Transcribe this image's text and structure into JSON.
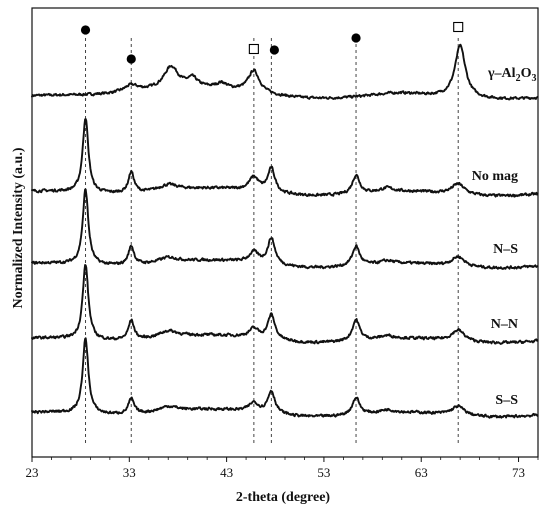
{
  "chart_data": {
    "type": "line",
    "title": "",
    "xlabel": "2-theta (degree)",
    "ylabel": "Normalized Intensity (a.u.)",
    "xlim": [
      23,
      75
    ],
    "xticks": [
      23,
      33,
      43,
      53,
      63,
      73
    ],
    "grid": false,
    "markers": [
      {
        "symbol": "filled-circle",
        "x": 28.5
      },
      {
        "symbol": "filled-circle",
        "x": 33.2
      },
      {
        "symbol": "open-square",
        "x": 45.8
      },
      {
        "symbol": "filled-circle",
        "x": 47.6
      },
      {
        "symbol": "filled-circle",
        "x": 56.3
      },
      {
        "symbol": "open-square",
        "x": 66.8
      }
    ],
    "series": [
      {
        "name": "γ–Al₂O₃",
        "label_parts": [
          "γ–Al",
          "2",
          "O",
          "3"
        ],
        "peaks": [
          [
            33.2,
            0.13,
            0.9
          ],
          [
            37.3,
            0.42,
            0.9
          ],
          [
            39.5,
            0.16,
            0.6
          ],
          [
            42.5,
            0.1,
            0.6
          ],
          [
            45.8,
            0.42,
            0.7
          ],
          [
            60.5,
            0.06,
            3.0
          ],
          [
            67.0,
            1.0,
            0.65
          ]
        ],
        "baseline": [
          0.08,
          0.18,
          0.03
        ],
        "noise": 0.04
      },
      {
        "name": "No mag",
        "peaks": [
          [
            28.5,
            1.0,
            0.35
          ],
          [
            33.2,
            0.28,
            0.35
          ],
          [
            37.0,
            0.08,
            1.2
          ],
          [
            45.8,
            0.18,
            0.6
          ],
          [
            47.6,
            0.32,
            0.45
          ],
          [
            56.3,
            0.25,
            0.45
          ],
          [
            59.5,
            0.05,
            0.8
          ],
          [
            66.8,
            0.14,
            0.8
          ]
        ],
        "baseline": [
          0.03,
          0.08,
          0.03
        ],
        "noise": 0.03
      },
      {
        "name": "N–S",
        "peaks": [
          [
            28.5,
            1.0,
            0.35
          ],
          [
            33.2,
            0.25,
            0.35
          ],
          [
            37.0,
            0.07,
            1.2
          ],
          [
            45.8,
            0.14,
            0.6
          ],
          [
            47.6,
            0.35,
            0.45
          ],
          [
            56.3,
            0.26,
            0.45
          ],
          [
            59.5,
            0.04,
            0.8
          ],
          [
            66.8,
            0.13,
            0.8
          ]
        ],
        "baseline": [
          0.03,
          0.08,
          0.03
        ],
        "noise": 0.03
      },
      {
        "name": "N–N",
        "peaks": [
          [
            28.5,
            1.0,
            0.35
          ],
          [
            33.2,
            0.26,
            0.35
          ],
          [
            37.0,
            0.09,
            1.2
          ],
          [
            45.8,
            0.12,
            0.6
          ],
          [
            47.6,
            0.33,
            0.45
          ],
          [
            56.3,
            0.28,
            0.45
          ],
          [
            59.5,
            0.04,
            0.8
          ],
          [
            66.8,
            0.15,
            0.8
          ]
        ],
        "baseline": [
          0.03,
          0.08,
          0.03
        ],
        "noise": 0.03
      },
      {
        "name": "S–S",
        "peaks": [
          [
            28.5,
            1.0,
            0.35
          ],
          [
            33.2,
            0.2,
            0.35
          ],
          [
            37.0,
            0.07,
            1.2
          ],
          [
            45.8,
            0.12,
            0.6
          ],
          [
            47.6,
            0.3,
            0.45
          ],
          [
            56.3,
            0.23,
            0.45
          ],
          [
            59.5,
            0.04,
            0.8
          ],
          [
            66.8,
            0.12,
            0.8
          ]
        ],
        "baseline": [
          0.03,
          0.08,
          0.03
        ],
        "noise": 0.03
      }
    ]
  }
}
